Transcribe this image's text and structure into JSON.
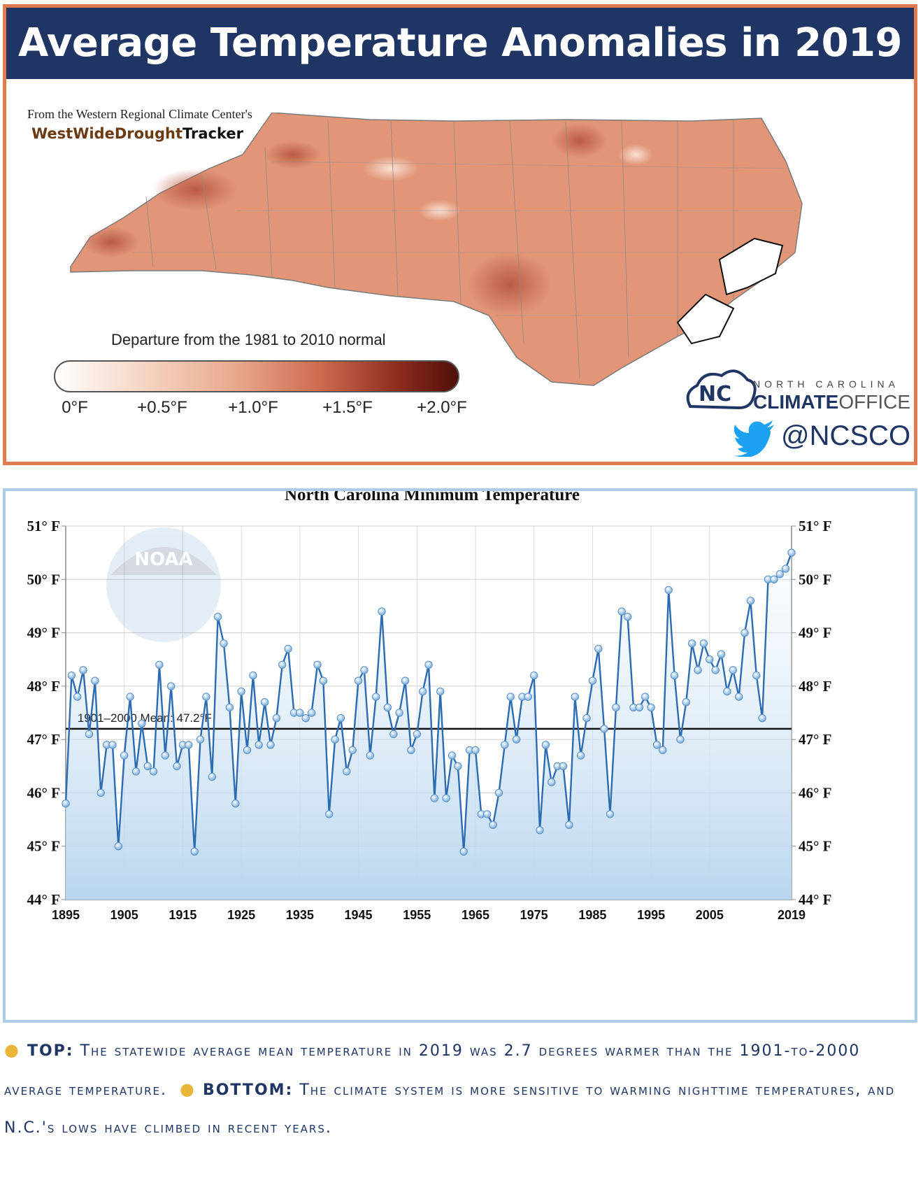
{
  "top": {
    "title": "Average Temperature Anomalies in 2019",
    "source_line": "From the Western Regional Climate Center's",
    "tracker_a": "WestWideDrought",
    "tracker_b": "Tracker",
    "legend_title": "Departure from the 1981 to 2010 normal",
    "legend_ticks": [
      "0°F",
      "+0.5°F",
      "+1.0°F",
      "+1.5°F",
      "+2.0°F"
    ],
    "logo_north": "NORTH CAROLINA",
    "logo_climate": "CLIMATE",
    "logo_office": "OFFICE",
    "handle": "@NCSCO",
    "colors": {
      "banner": "#1f3564",
      "border": "#e07a50",
      "map_fill": "#e29677"
    }
  },
  "chart_data": {
    "type": "line",
    "title": "North Carolina Minimum Temperature",
    "watermark": "NOAA",
    "ylim": [
      44,
      51
    ],
    "y_ticks": [
      "44° F",
      "45° F",
      "46° F",
      "47° F",
      "48° F",
      "49° F",
      "50° F",
      "51° F"
    ],
    "x_ticks": [
      "1895",
      "1905",
      "1915",
      "1925",
      "1935",
      "1945",
      "1955",
      "1965",
      "1975",
      "1985",
      "1995",
      "2005",
      "2019"
    ],
    "mean_label": "1901–2000 Mean: 47.2°F",
    "mean_value": 47.2,
    "x": [
      1895,
      1896,
      1897,
      1898,
      1899,
      1900,
      1901,
      1902,
      1903,
      1904,
      1905,
      1906,
      1907,
      1908,
      1909,
      1910,
      1911,
      1912,
      1913,
      1914,
      1915,
      1916,
      1917,
      1918,
      1919,
      1920,
      1921,
      1922,
      1923,
      1924,
      1925,
      1926,
      1927,
      1928,
      1929,
      1930,
      1931,
      1932,
      1933,
      1934,
      1935,
      1936,
      1937,
      1938,
      1939,
      1940,
      1941,
      1942,
      1943,
      1944,
      1945,
      1946,
      1947,
      1948,
      1949,
      1950,
      1951,
      1952,
      1953,
      1954,
      1955,
      1956,
      1957,
      1958,
      1959,
      1960,
      1961,
      1962,
      1963,
      1964,
      1965,
      1966,
      1967,
      1968,
      1969,
      1970,
      1971,
      1972,
      1973,
      1974,
      1975,
      1976,
      1977,
      1978,
      1979,
      1980,
      1981,
      1982,
      1983,
      1984,
      1985,
      1986,
      1987,
      1988,
      1989,
      1990,
      1991,
      1992,
      1993,
      1994,
      1995,
      1996,
      1997,
      1998,
      1999,
      2000,
      2001,
      2002,
      2003,
      2004,
      2005,
      2006,
      2007,
      2008,
      2009,
      2010,
      2011,
      2012,
      2013,
      2014,
      2015,
      2016,
      2017,
      2018,
      2019
    ],
    "values": [
      45.8,
      48.2,
      47.8,
      48.3,
      47.1,
      48.1,
      46.0,
      46.9,
      46.9,
      45.0,
      46.7,
      47.8,
      46.4,
      47.3,
      46.5,
      46.4,
      48.4,
      46.7,
      48.0,
      46.5,
      46.9,
      46.9,
      44.9,
      47.0,
      47.8,
      46.3,
      49.3,
      48.8,
      47.6,
      45.8,
      47.9,
      46.8,
      48.2,
      46.9,
      47.7,
      46.9,
      47.4,
      48.4,
      48.7,
      47.5,
      47.5,
      47.4,
      47.5,
      48.4,
      48.1,
      45.6,
      47.0,
      47.4,
      46.4,
      46.8,
      48.1,
      48.3,
      46.7,
      47.8,
      49.4,
      47.6,
      47.1,
      47.5,
      48.1,
      46.8,
      47.1,
      47.9,
      48.4,
      45.9,
      47.9,
      45.9,
      46.7,
      46.5,
      44.9,
      46.8,
      46.8,
      45.6,
      45.6,
      45.4,
      46.0,
      46.9,
      47.8,
      47.0,
      47.8,
      47.8,
      48.2,
      45.3,
      46.9,
      46.2,
      46.5,
      46.5,
      45.4,
      47.8,
      46.7,
      47.4,
      48.1,
      48.7,
      47.2,
      45.6,
      47.6,
      49.4,
      49.3,
      47.6,
      47.6,
      47.8,
      47.6,
      46.9,
      46.8,
      49.8,
      48.2,
      47.0,
      47.7,
      48.8,
      48.3,
      48.8,
      48.5,
      48.3,
      48.6,
      47.9,
      48.3,
      47.8,
      49.0,
      49.6,
      48.2,
      47.4,
      50.0,
      50.0,
      50.1,
      50.2,
      50.5
    ]
  },
  "caption": {
    "top_head": "TOP:",
    "top_text": "The statewide average mean temperature in 2019 was 2.7 degrees warmer than the 1901-to-2000 average temperature.",
    "bottom_head": "BOTTOM:",
    "bottom_text": "The climate system is more sensitive to warming nighttime temperatures, and N.C.'s lows have climbed in recent years."
  }
}
